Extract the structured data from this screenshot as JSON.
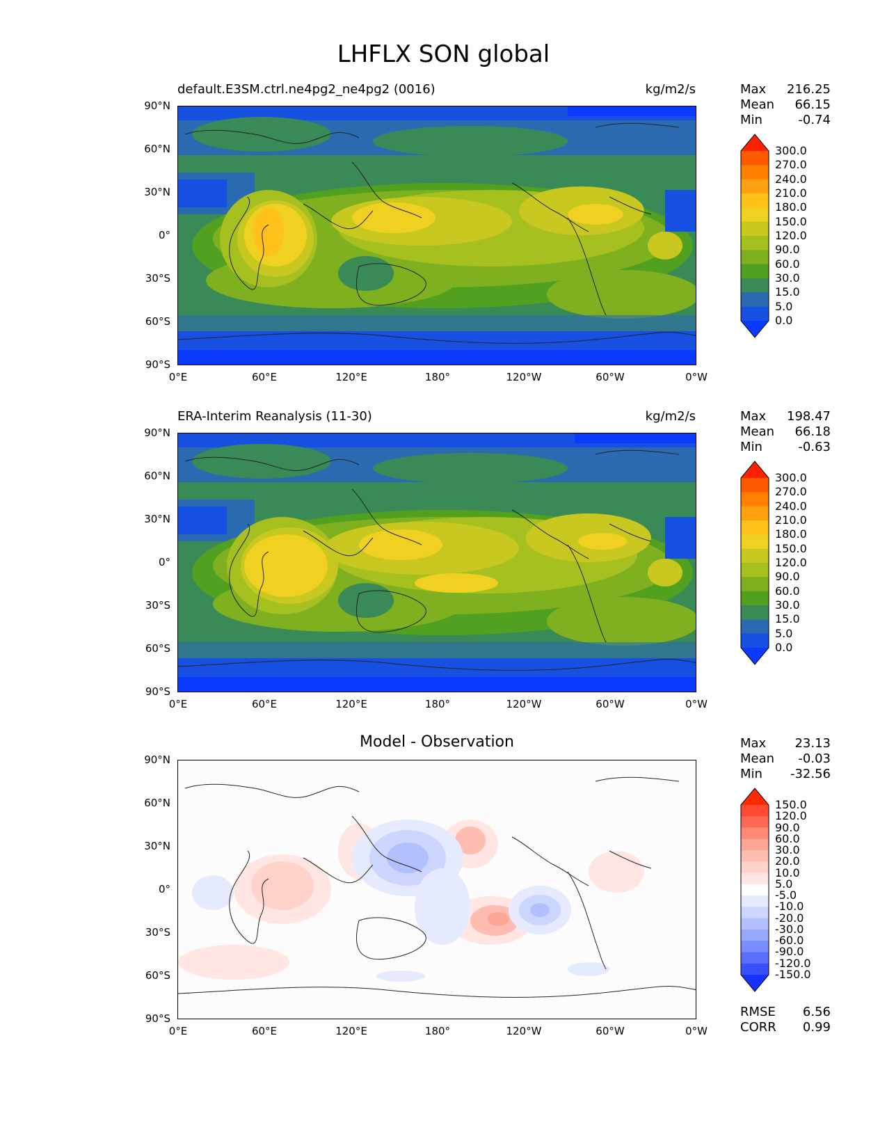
{
  "figure": {
    "title": "LHFLX SON global"
  },
  "axes": {
    "lat_labels": [
      "90°N",
      "60°N",
      "30°N",
      "0°",
      "30°S",
      "60°S",
      "90°S"
    ],
    "lon_labels": [
      "0°E",
      "60°E",
      "120°E",
      "180°",
      "120°W",
      "60°W",
      "0°W"
    ]
  },
  "panels": [
    {
      "title_left": "default.E3SM.ctrl.ne4pg2_ne4pg2 (0016)",
      "title_right": "kg/m2/s",
      "title_center": "",
      "stats": [
        {
          "label": "Max",
          "value": "216.25"
        },
        {
          "label": "Mean",
          "value": "66.15"
        },
        {
          "label": "Min",
          "value": "-0.74"
        }
      ],
      "colorbar_labels": [
        "300.0",
        "270.0",
        "240.0",
        "210.0",
        "180.0",
        "150.0",
        "120.0",
        "90.0",
        "60.0",
        "30.0",
        "15.0",
        "5.0",
        "0.0"
      ],
      "colorbar_colors": [
        "#ff2200",
        "#ff5a00",
        "#ff7f00",
        "#ffa010",
        "#ffc21a",
        "#f0d020",
        "#c8c820",
        "#a6c020",
        "#7fb020",
        "#52a020",
        "#3a8a58",
        "#2a6ab0",
        "#1550e0",
        "#0a3aff"
      ]
    },
    {
      "title_left": "ERA-Interim Reanalysis (11-30)",
      "title_right": "kg/m2/s",
      "title_center": "",
      "stats": [
        {
          "label": "Max",
          "value": "198.47"
        },
        {
          "label": "Mean",
          "value": "66.18"
        },
        {
          "label": "Min",
          "value": "-0.63"
        }
      ],
      "colorbar_labels": [
        "300.0",
        "270.0",
        "240.0",
        "210.0",
        "180.0",
        "150.0",
        "120.0",
        "90.0",
        "60.0",
        "30.0",
        "15.0",
        "5.0",
        "0.0"
      ],
      "colorbar_colors": [
        "#ff2200",
        "#ff5a00",
        "#ff7f00",
        "#ffa010",
        "#ffc21a",
        "#f0d020",
        "#c8c820",
        "#a6c020",
        "#7fb020",
        "#52a020",
        "#3a8a58",
        "#2a6ab0",
        "#1550e0",
        "#0a3aff"
      ]
    },
    {
      "title_left": "",
      "title_right": "",
      "title_center": "Model - Observation",
      "stats": [
        {
          "label": "Max",
          "value": "23.13"
        },
        {
          "label": "Mean",
          "value": "-0.03"
        },
        {
          "label": "Min",
          "value": "-32.56"
        }
      ],
      "colorbar_labels": [
        "150.0",
        "120.0",
        "90.0",
        "60.0",
        "30.0",
        "20.0",
        "10.0",
        "5.0",
        "-5.0",
        "-10.0",
        "-20.0",
        "-30.0",
        "-60.0",
        "-90.0",
        "-120.0",
        "-150.0"
      ],
      "colorbar_colors": [
        "#ff2a00",
        "#ff4a30",
        "#ff6a55",
        "#ff8a78",
        "#ffa595",
        "#ffbcb0",
        "#ffd2ca",
        "#ffe6e2",
        "#ffffff",
        "#e6eaff",
        "#ccd6ff",
        "#b3c0ff",
        "#98a8ff",
        "#7a8cff",
        "#5a6eff",
        "#3a50ff",
        "#1a30ff"
      ],
      "metrics": [
        {
          "label": "RMSE",
          "value": "6.56"
        },
        {
          "label": "CORR",
          "value": "0.99"
        }
      ]
    }
  ]
}
